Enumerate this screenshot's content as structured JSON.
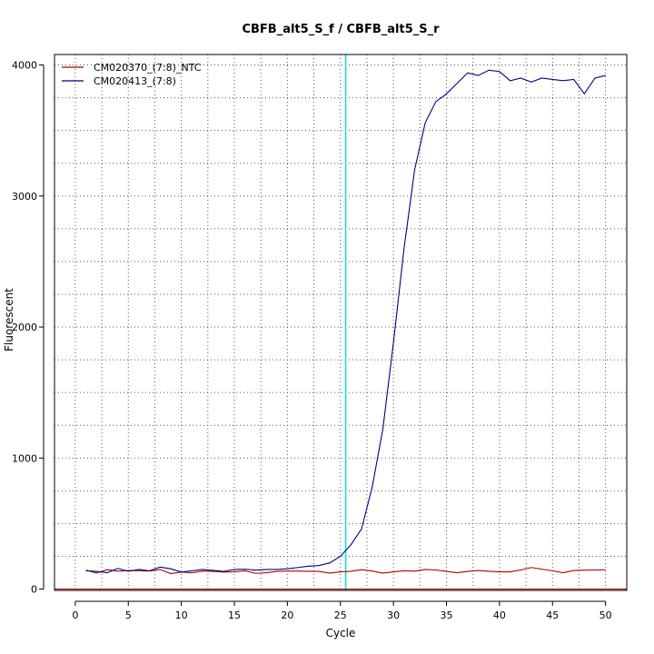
{
  "chart_data": {
    "type": "line",
    "title": "CBFB_alt5_S_f / CBFB_alt5_S_r",
    "xlabel": "Cycle",
    "ylabel": "Fluorescent",
    "xlim": [
      -1.96,
      52.0
    ],
    "ylim": [
      -10,
      4080
    ],
    "xticks": [
      0,
      5,
      10,
      15,
      20,
      25,
      30,
      35,
      40,
      45,
      50
    ],
    "yticks": [
      0,
      1000,
      2000,
      3000,
      4000
    ],
    "grid": true,
    "legend_position": "top-left",
    "threshold": {
      "cycle": 25.5,
      "color": "#00e5e5"
    },
    "baseline": {
      "value": 0,
      "color": "#aa0000"
    },
    "x": [
      1,
      2,
      3,
      4,
      5,
      6,
      7,
      8,
      9,
      10,
      11,
      12,
      13,
      14,
      15,
      16,
      17,
      18,
      19,
      20,
      21,
      22,
      23,
      24,
      25,
      26,
      27,
      28,
      29,
      30,
      31,
      32,
      33,
      34,
      35,
      36,
      37,
      38,
      39,
      40,
      41,
      42,
      43,
      44,
      45,
      46,
      47,
      48,
      49,
      50
    ],
    "series": [
      {
        "name": "CM020370_(7:8)_NTC",
        "color": "#aa0000",
        "values": [
          145,
          122,
          148,
          137,
          142,
          140,
          138,
          150,
          118,
          130,
          125,
          138,
          135,
          130,
          132,
          140,
          120,
          125,
          135,
          138,
          138,
          136,
          135,
          122,
          132,
          136,
          148,
          138,
          122,
          132,
          140,
          137,
          150,
          146,
          135,
          125,
          135,
          142,
          136,
          132,
          132,
          146,
          165,
          152,
          140,
          125,
          142,
          145,
          146,
          148
        ]
      },
      {
        "name": "CM020413_(7:8)",
        "color": "#000080",
        "values": [
          140,
          135,
          125,
          158,
          136,
          150,
          140,
          168,
          155,
          130,
          140,
          150,
          143,
          135,
          150,
          152,
          145,
          150,
          150,
          155,
          165,
          175,
          180,
          200,
          250,
          340,
          460,
          780,
          1220,
          1880,
          2600,
          3200,
          3560,
          3720,
          3780,
          3860,
          3940,
          3920,
          3960,
          3950,
          3880,
          3900,
          3870,
          3900,
          3890,
          3880,
          3890,
          3780,
          3900,
          3920
        ]
      }
    ]
  }
}
